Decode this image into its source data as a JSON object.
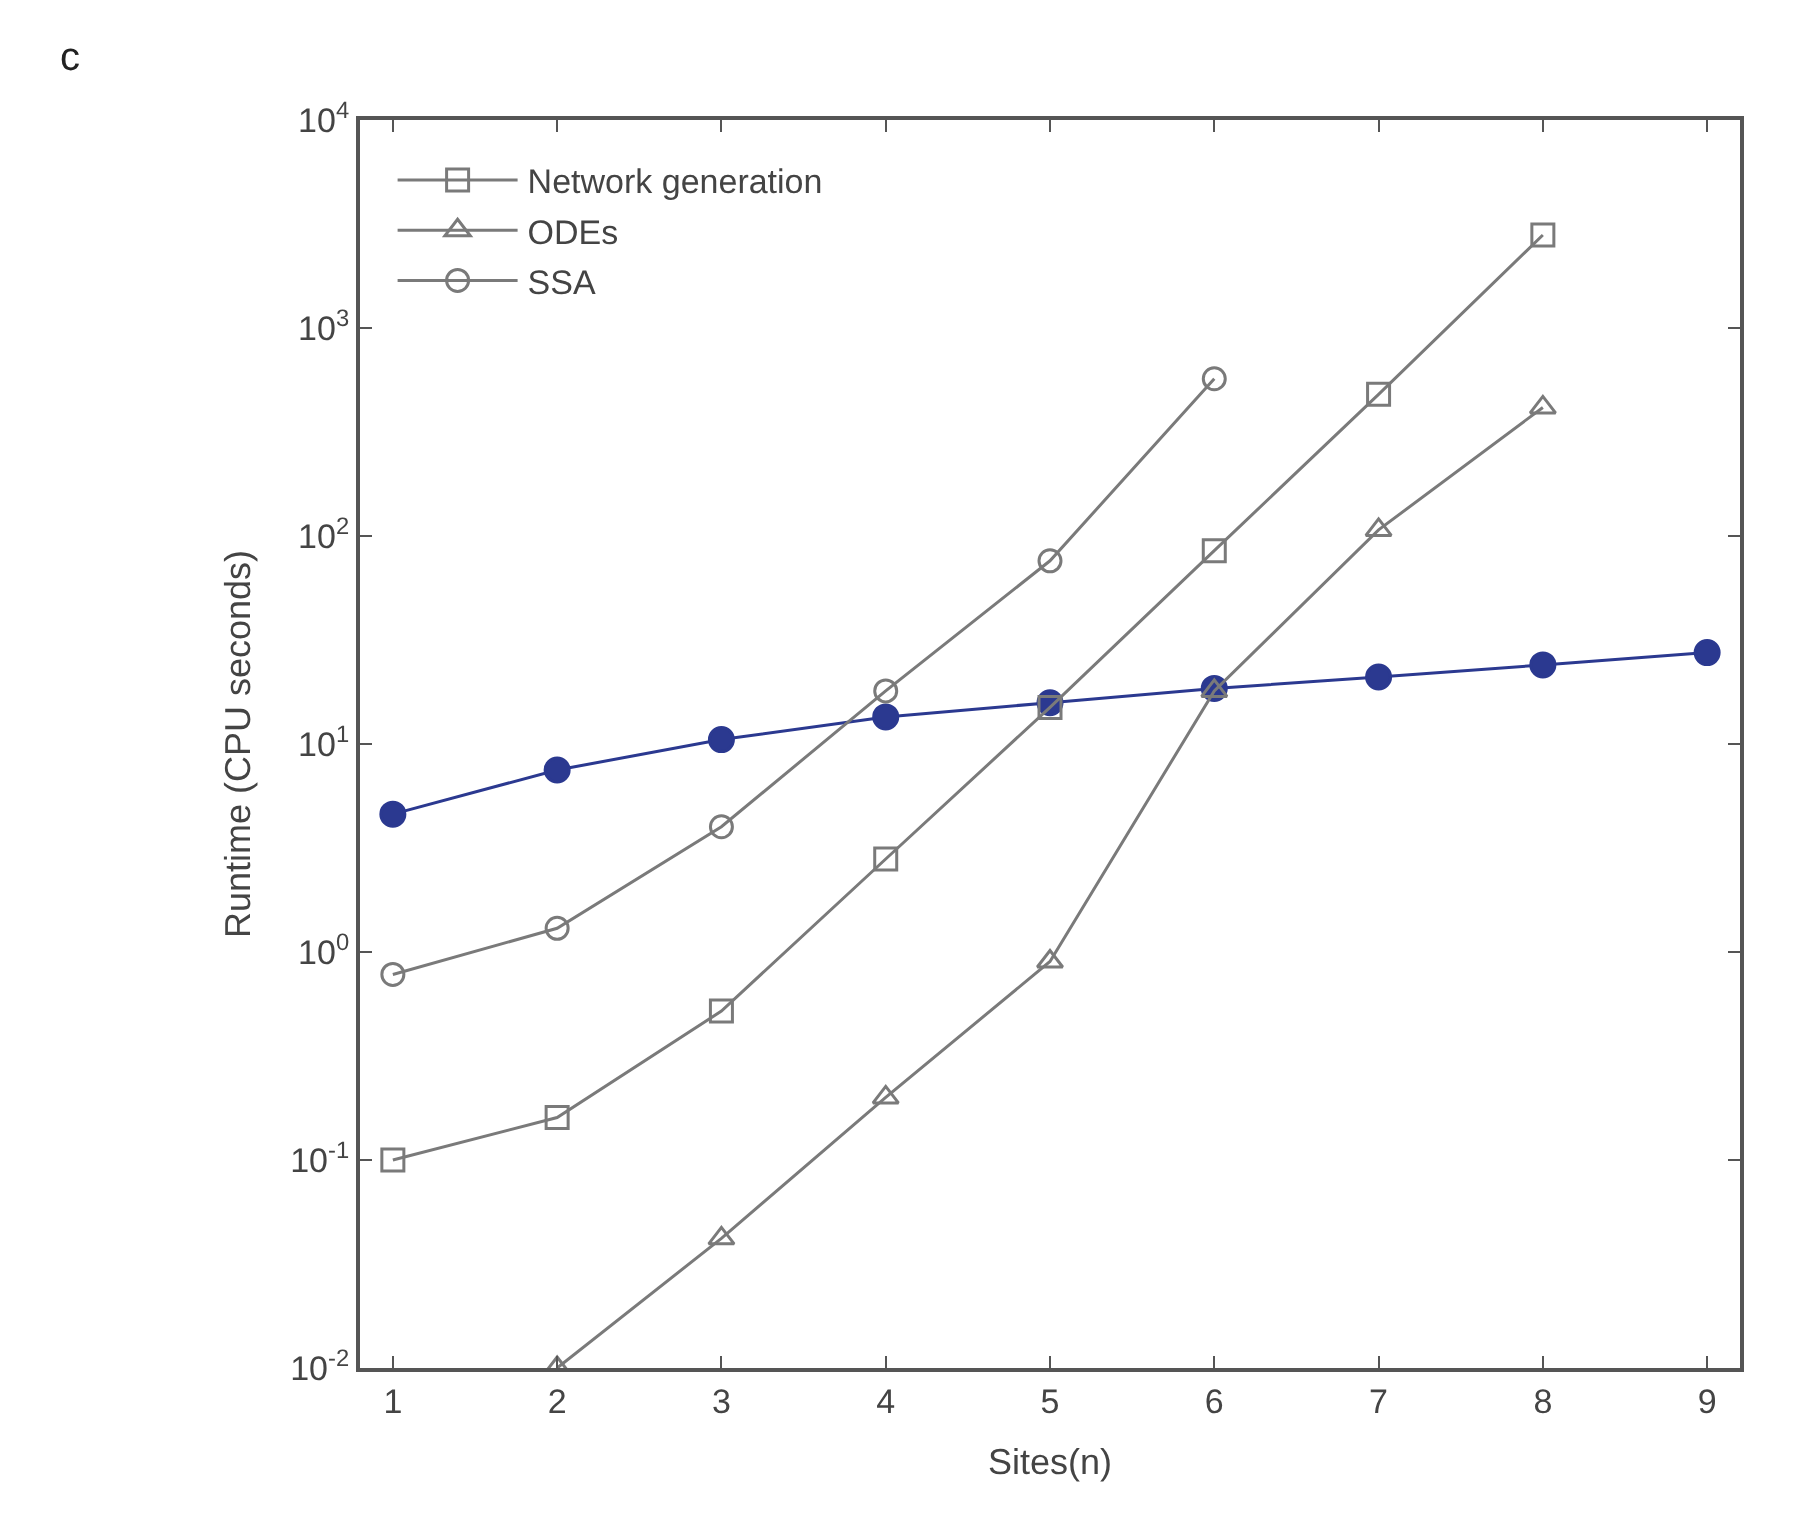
{
  "chart_data": {
    "type": "line",
    "xlabel": "Sites(n)",
    "ylabel": "Runtime (CPU seconds)",
    "annotations": [
      "c"
    ],
    "x": [
      1,
      2,
      3,
      4,
      5,
      6,
      7,
      8,
      9
    ],
    "series": [
      {
        "name": "Network generation",
        "color": "#7a7a7a",
        "marker": "square",
        "values": [
          0.1,
          0.16,
          0.52,
          2.8,
          15,
          85,
          480,
          2800,
          null
        ]
      },
      {
        "name": "ODEs",
        "color": "#7a7a7a",
        "marker": "triangle",
        "values": [
          null,
          0.01,
          0.042,
          0.2,
          0.9,
          18,
          107,
          415,
          null
        ]
      },
      {
        "name": "SSA",
        "color": "#7a7a7a",
        "marker": "circle",
        "values": [
          0.78,
          1.3,
          4,
          18,
          76,
          570,
          null,
          null,
          null
        ]
      },
      {
        "color": "#2b3990",
        "marker": "filled_circle",
        "values": [
          4.6,
          7.5,
          10.5,
          13.5,
          15.8,
          18.5,
          21,
          24,
          27.5
        ]
      }
    ],
    "log": true,
    "legend": "top left",
    "xlim": [
      0.8,
      9.2
    ],
    "xticks": [
      1,
      2,
      3,
      4,
      5,
      6,
      7,
      8,
      9
    ],
    "ylim": [
      0.01,
      10000
    ],
    "yticks": [
      {
        "value": 0.01,
        "label": "10$^{-2}$"
      },
      {
        "value": 0.1,
        "label": "10$^{-1}$"
      },
      {
        "value": 1,
        "label": "10$^{0}$"
      },
      {
        "value": 10,
        "label": "10$^{1}$"
      },
      {
        "value": 100,
        "label": "10$^{2}$"
      },
      {
        "value": 1000,
        "label": "10$^{3}$"
      },
      {
        "value": 10000,
        "label": "10$^{4}$"
      }
    ]
  }
}
